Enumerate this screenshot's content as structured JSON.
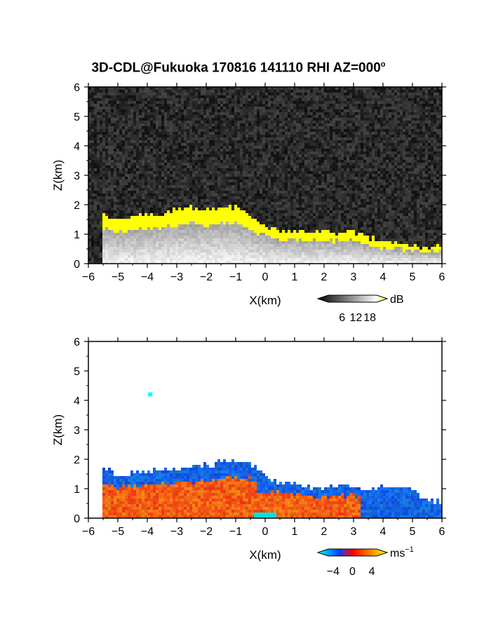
{
  "title": "3D-CDL@Fukuoka 170816 141110 RHI AZ=000",
  "title_sup": "o",
  "chart_data": [
    {
      "type": "heatmap",
      "name": "reflectivity",
      "xlabel": "X(km)",
      "ylabel": "Z(km)",
      "xlim": [
        -6,
        6
      ],
      "ylim": [
        0,
        6
      ],
      "xticks": [
        -6,
        -5,
        -4,
        -3,
        -2,
        -1,
        0,
        1,
        2,
        3,
        4,
        5,
        6
      ],
      "yticks": [
        0,
        1,
        2,
        3,
        4,
        5,
        6
      ],
      "background": "noise-dark",
      "colorbar": {
        "unit": "dB",
        "ticks": [
          6,
          12,
          18
        ],
        "range": [
          0,
          21
        ],
        "colors": [
          "#000000",
          "#ffffff",
          "#ffff00"
        ]
      },
      "echo_top_profile": [
        [
          -5.5,
          1.7
        ],
        [
          -5,
          1.5
        ],
        [
          -4.5,
          1.6
        ],
        [
          -4,
          1.65
        ],
        [
          -3.5,
          1.7
        ],
        [
          -3,
          1.85
        ],
        [
          -2.5,
          1.9
        ],
        [
          -2,
          1.8
        ],
        [
          -1.5,
          1.95
        ],
        [
          -1,
          1.9
        ],
        [
          -0.5,
          1.6
        ],
        [
          0,
          1.3
        ],
        [
          0.5,
          1.1
        ],
        [
          1,
          1.15
        ],
        [
          1.5,
          1.05
        ],
        [
          2,
          1.1
        ],
        [
          2.5,
          1.05
        ],
        [
          3,
          1.1
        ],
        [
          3.5,
          0.9
        ],
        [
          4,
          0.75
        ],
        [
          4.5,
          0.7
        ],
        [
          5,
          0.6
        ],
        [
          5.5,
          0.55
        ],
        [
          6,
          0.6
        ]
      ]
    },
    {
      "type": "heatmap",
      "name": "doppler_velocity",
      "xlabel": "X(km)",
      "ylabel": "Z(km)",
      "xlim": [
        -6,
        6
      ],
      "ylim": [
        0,
        6
      ],
      "xticks": [
        -6,
        -5,
        -4,
        -3,
        -2,
        -1,
        0,
        1,
        2,
        3,
        4,
        5,
        6
      ],
      "yticks": [
        0,
        1,
        2,
        3,
        4,
        5,
        6
      ],
      "background": "white",
      "colorbar": {
        "unit": "ms",
        "unit_sup": "−1",
        "ticks": [
          -4,
          0,
          4
        ],
        "range": [
          -5,
          5
        ],
        "colors": [
          "#00ffff",
          "#0044ff",
          "#ff0000",
          "#ffff00"
        ]
      },
      "echo_top_profile": [
        [
          -5.5,
          1.7
        ],
        [
          -5,
          1.5
        ],
        [
          -4.5,
          1.55
        ],
        [
          -4,
          1.6
        ],
        [
          -3.5,
          1.65
        ],
        [
          -3,
          1.7
        ],
        [
          -2.5,
          1.75
        ],
        [
          -2,
          1.8
        ],
        [
          -1.5,
          1.9
        ],
        [
          -1,
          2.0
        ],
        [
          -0.5,
          1.9
        ],
        [
          0,
          1.4
        ],
        [
          0.5,
          1.2
        ],
        [
          1,
          1.2
        ],
        [
          1.5,
          1.05
        ],
        [
          2,
          1.05
        ],
        [
          2.5,
          1.1
        ],
        [
          3,
          1.1
        ],
        [
          3.5,
          0.9
        ],
        [
          4,
          1.1
        ],
        [
          4.5,
          1.0
        ],
        [
          5,
          1.0
        ],
        [
          5.5,
          0.6
        ],
        [
          6,
          0.6
        ]
      ],
      "isolated_echo": {
        "x": -3.9,
        "z": 4.2
      }
    }
  ]
}
